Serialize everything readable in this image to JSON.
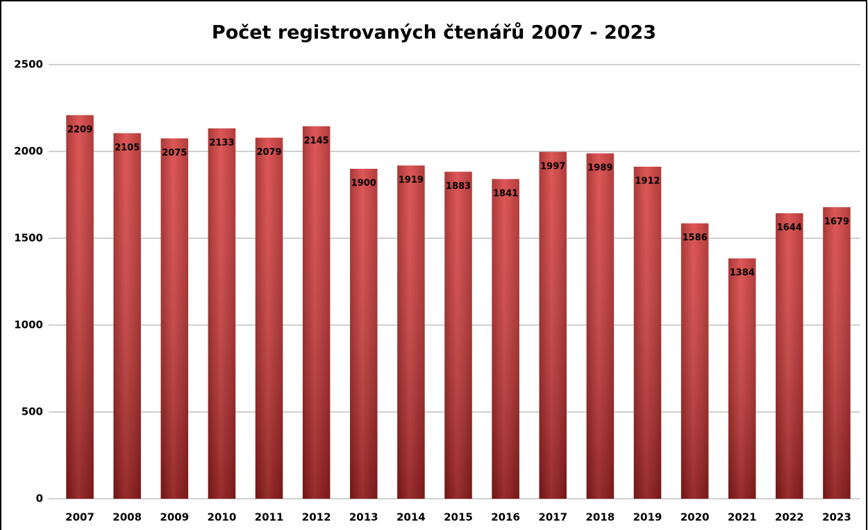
{
  "chart_data": {
    "type": "bar",
    "title": "Počet registrovaných čtenářů 2007 - 2023",
    "categories": [
      "2007",
      "2008",
      "2009",
      "2010",
      "2011",
      "2012",
      "2013",
      "2014",
      "2015",
      "2016",
      "2017",
      "2018",
      "2019",
      "2020",
      "2021",
      "2022",
      "2023"
    ],
    "values": [
      2209,
      2105,
      2075,
      2133,
      2079,
      2145,
      1900,
      1919,
      1883,
      1841,
      1997,
      1989,
      1912,
      1586,
      1384,
      1644,
      1679
    ],
    "color": "#d94040",
    "ylim": [
      0,
      2500
    ],
    "yticks": [
      0,
      500,
      1000,
      1500,
      2000,
      2500
    ],
    "grid": true
  }
}
